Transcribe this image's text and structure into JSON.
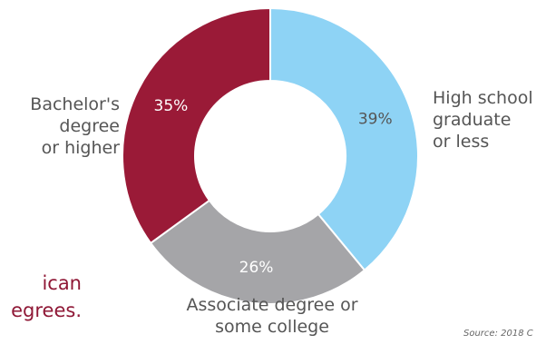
{
  "chart_data": {
    "type": "pie",
    "categories": [
      "High school graduate or less",
      "Associate degree or some college",
      "Bachelor's degree or higher"
    ],
    "values": [
      39,
      26,
      35
    ],
    "value_labels": [
      "39%",
      "26%",
      "35%"
    ],
    "category_labels": [
      "High school\ngraduate\nor less",
      "Associate degree or\nsome college",
      "Bachelor's\ndegree\nor higher"
    ],
    "colors": [
      "#8ed3f5",
      "#a5a5a8",
      "#9a1a37"
    ],
    "label_colors": [
      "#555555",
      "#ffffff",
      "#ffffff"
    ],
    "donut": true
  },
  "callout_text": "ican\negrees.",
  "source_text": "Source: 2018 C"
}
